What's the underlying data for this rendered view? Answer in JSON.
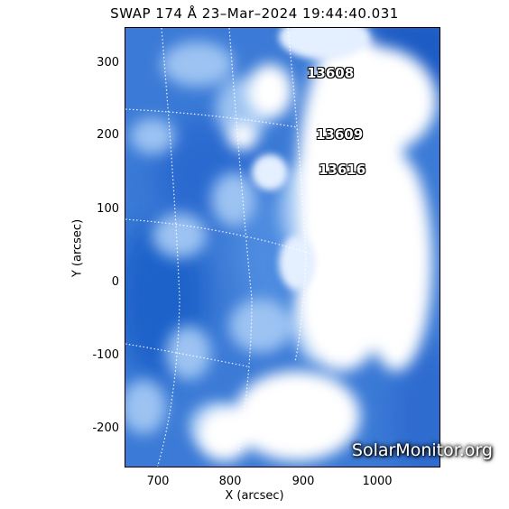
{
  "title": "SWAP 174 Å 23–Mar–2024 19:44:40.031",
  "xlabel": "X (arcsec)",
  "ylabel": "Y (arcsec)",
  "xticks": [
    "700",
    "800",
    "900",
    "1000"
  ],
  "yticks": [
    "300",
    "200",
    "100",
    "0",
    "-100",
    "-200"
  ],
  "regions": [
    "13608",
    "13609",
    "13616"
  ],
  "watermark": "SolarMonitor.org",
  "colors": {
    "disk_blue": "#2f6ed0",
    "bright": "#ffffff",
    "deep_blue": "#0c4fb8"
  }
}
